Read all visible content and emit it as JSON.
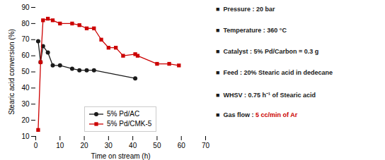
{
  "chart_data": {
    "type": "line",
    "xlabel": "Time on stream (h)",
    "ylabel": "Stearic acid conversion (%)",
    "xlim": [
      0,
      70
    ],
    "ylim": [
      10,
      90
    ],
    "xticks": [
      0,
      10,
      20,
      30,
      40,
      50,
      60,
      70
    ],
    "yticks": [
      10,
      20,
      30,
      40,
      50,
      60,
      70,
      80,
      90
    ],
    "grid": false,
    "legend": "lower center",
    "series": [
      {
        "name": "5% Pd/AC",
        "color": "#1a1a1a",
        "marker": "circle",
        "x": [
          1,
          2,
          3,
          5,
          7,
          10,
          15,
          18,
          21,
          24,
          41
        ],
        "values": [
          69,
          56,
          66,
          62,
          54,
          54,
          52,
          51,
          51,
          51,
          46
        ]
      },
      {
        "name": "5% Pd/CMK-5",
        "color": "#cc0000",
        "marker": "square",
        "x": [
          1,
          2,
          3,
          5,
          7,
          10,
          15,
          18,
          21,
          24,
          27,
          30,
          33,
          36,
          41,
          42,
          50,
          55,
          59
        ],
        "values": [
          14,
          56,
          82,
          83,
          82,
          80,
          80,
          79,
          77,
          77,
          70,
          65,
          65,
          60,
          61,
          60,
          55,
          55,
          54
        ]
      }
    ],
    "annotations": [
      [
        {
          "text": "■  Pressure : 20 bar",
          "color": "#1a1a1a"
        }
      ],
      [
        {
          "text": "■  Temperature : 360 °C",
          "color": "#1a1a1a"
        }
      ],
      [
        {
          "text": "■  Catalyst : 5% Pd/Carbon = 0.3 g",
          "color": "#1a1a1a"
        }
      ],
      [
        {
          "text": "■  Feed : 20% Stearic acid in dedecane",
          "color": "#1a1a1a"
        }
      ],
      [
        {
          "text": "■  WHSV : 0.75 h⁻¹ of Stearic acid",
          "color": "#1a1a1a"
        }
      ],
      [
        {
          "text": "■  Gas flow : ",
          "color": "#1a1a1a"
        },
        {
          "text": "5 cc/min of Ar",
          "color": "#cc0000"
        }
      ]
    ]
  }
}
